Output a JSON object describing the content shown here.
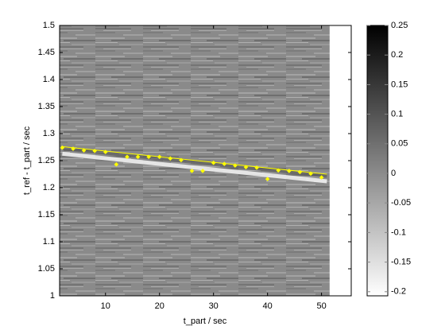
{
  "chart_data": {
    "type": "scatter",
    "xlabel": "t_part / sec",
    "ylabel": "t_ref - t_part / sec",
    "xlim": [
      1.5,
      55.5
    ],
    "xticks": [
      10,
      20,
      30,
      40,
      50
    ],
    "ylim": [
      1,
      1.5
    ],
    "yticks": [
      1,
      1.05,
      1.1,
      1.15,
      1.2,
      1.25,
      1.3,
      1.35,
      1.4,
      1.45,
      1.5
    ],
    "image_x": [
      1.5,
      51.5
    ],
    "series": [
      {
        "style": "points",
        "color": "#ffff00",
        "x": [
          2,
          4,
          6,
          8,
          10,
          12,
          14,
          16,
          18,
          20,
          22,
          24,
          26,
          28,
          30,
          32,
          34,
          36,
          38,
          40,
          42,
          44,
          46,
          48,
          50
        ],
        "values": [
          1.274,
          1.272,
          1.269,
          1.268,
          1.266,
          1.243,
          1.257,
          1.257,
          1.257,
          1.257,
          1.254,
          1.251,
          1.231,
          1.231,
          1.246,
          1.244,
          1.241,
          1.238,
          1.237,
          1.216,
          1.232,
          1.231,
          1.229,
          1.226,
          1.219
        ]
      },
      {
        "style": "line",
        "color": "#ffff00",
        "x": [
          2,
          51
        ],
        "values": [
          1.276,
          1.225
        ]
      }
    ],
    "colorbar": {
      "lim": [
        -0.207,
        0.25
      ],
      "ticks": [
        -0.2,
        -0.15,
        -0.1,
        -0.05,
        0,
        0.05,
        0.1,
        0.15,
        0.2,
        0.25
      ]
    }
  }
}
